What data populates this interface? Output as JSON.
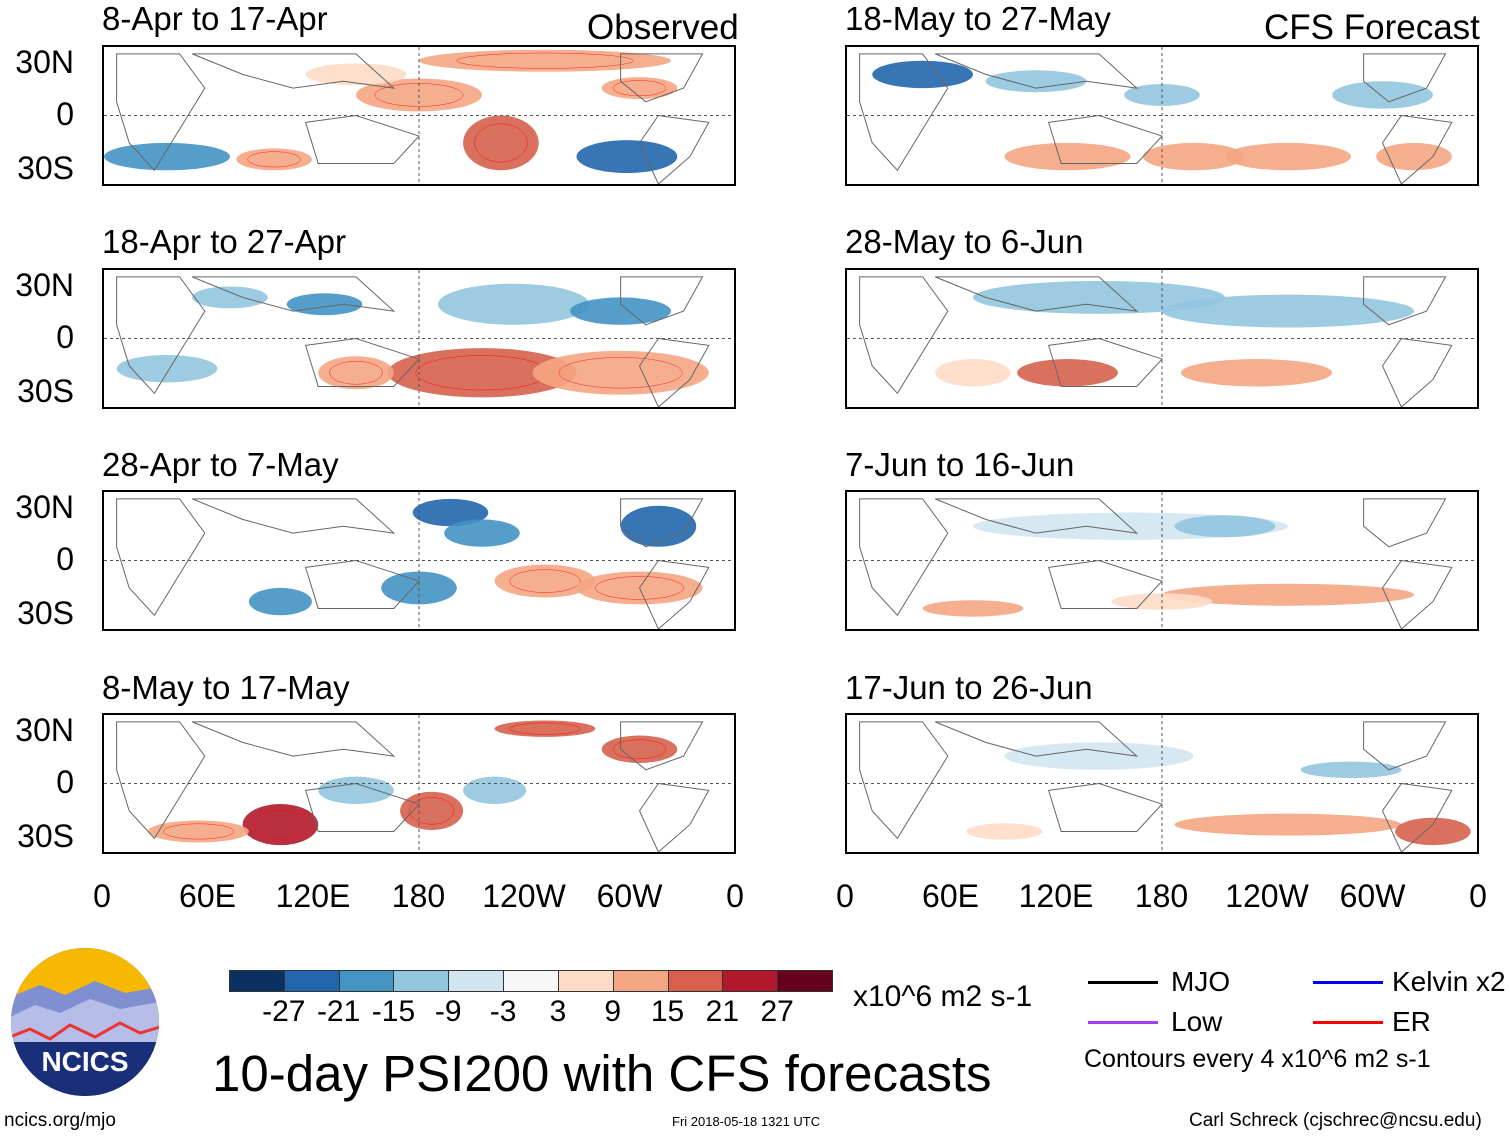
{
  "figure_title": "10-day PSI200 with CFS forecasts",
  "column_labels": {
    "observed": "Observed",
    "forecast": "CFS Forecast"
  },
  "observed_panels": [
    {
      "title": "8-Apr to 17-Apr"
    },
    {
      "title": "18-Apr to 27-Apr"
    },
    {
      "title": "28-Apr to 7-May"
    },
    {
      "title": "8-May to 17-May"
    }
  ],
  "forecast_panels": [
    {
      "title": "18-May to 27-May"
    },
    {
      "title": "28-May to 6-Jun"
    },
    {
      "title": "7-Jun to 16-Jun"
    },
    {
      "title": "17-Jun to 26-Jun"
    }
  ],
  "lat_ticks": [
    "30N",
    "0",
    "30S"
  ],
  "lon_ticks": [
    "0",
    "60E",
    "120E",
    "180",
    "120W",
    "60W",
    "0"
  ],
  "colorbar": {
    "colors": [
      "#0b3160",
      "#2166ac",
      "#4393c3",
      "#92c5de",
      "#d1e5f0",
      "#f7f7f7",
      "#fddbc7",
      "#f4a582",
      "#d6604d",
      "#b2182b",
      "#67001f"
    ],
    "labels": [
      "-27",
      "-21",
      "-15",
      "-9",
      "-3",
      "3",
      "9",
      "15",
      "21",
      "27"
    ],
    "units": "x10^6 m2 s-1"
  },
  "legend": {
    "items": [
      {
        "label": "MJO",
        "color": "#000000"
      },
      {
        "label": "Kelvin x2",
        "color": "#0000ff"
      },
      {
        "label": "Low",
        "color": "#a040f0"
      },
      {
        "label": "ER",
        "color": "#ff0000"
      }
    ],
    "contour_note": "Contours every 4 x10^6 m2 s-1"
  },
  "logo_text": "NCICS",
  "footer": {
    "url": "ncics.org/mjo",
    "timestamp": "Fri 2018-05-18 1321 UTC",
    "author": "Carl Schreck (cjschrec@ncsu.edu)"
  }
}
